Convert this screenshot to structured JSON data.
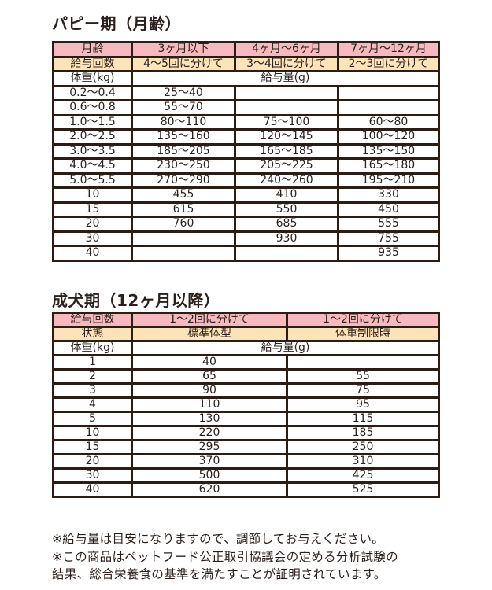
{
  "puppy": {
    "title": "パピー期（月齢）",
    "header_rows": [
      {
        "style": "pink",
        "cells": [
          "月齢",
          "3ヶ月以下",
          "4ヶ月〜6ヶ月",
          "7ヶ月〜12ヶ月"
        ]
      },
      {
        "style": "yellow",
        "cells": [
          "給与回数",
          "4〜5回に分けて",
          "3〜4回に分けて",
          "2〜3回に分けて"
        ]
      }
    ],
    "weight_label": "体重(kg)",
    "amount_label": "給与量(g)",
    "rows": [
      [
        "0.2〜0.4",
        "25〜40",
        "",
        ""
      ],
      [
        "0.6〜0.8",
        "55〜70",
        "",
        ""
      ],
      [
        "1.0〜1.5",
        "80〜110",
        "75〜100",
        "60〜80"
      ],
      [
        "2.0〜2.5",
        "135〜160",
        "120〜145",
        "100〜120"
      ],
      [
        "3.0〜3.5",
        "185〜205",
        "165〜185",
        "135〜150"
      ],
      [
        "4.0〜4.5",
        "230〜250",
        "205〜225",
        "165〜180"
      ],
      [
        "5.0〜5.5",
        "270〜290",
        "240〜260",
        "195〜210"
      ],
      [
        "10",
        "455",
        "410",
        "330"
      ],
      [
        "15",
        "615",
        "550",
        "450"
      ],
      [
        "20",
        "760",
        "685",
        "555"
      ],
      [
        "30",
        "",
        "930",
        "755"
      ],
      [
        "40",
        "",
        "",
        "935"
      ]
    ]
  },
  "adult": {
    "title": "成犬期（12ヶ月以降）",
    "header_rows": [
      {
        "style": "pink",
        "cells": [
          "給与回数",
          "1〜2回に分けて",
          "1〜2回に分けて"
        ]
      },
      {
        "style": "yellow",
        "cells": [
          "状態",
          "標準体型",
          "体重制限時"
        ]
      }
    ],
    "weight_label": "体重(kg)",
    "amount_label": "給与量(g)",
    "rows": [
      [
        "1",
        "40",
        ""
      ],
      [
        "2",
        "65",
        "55"
      ],
      [
        "3",
        "90",
        "75"
      ],
      [
        "4",
        "110",
        "95"
      ],
      [
        "5",
        "130",
        "115"
      ],
      [
        "10",
        "220",
        "185"
      ],
      [
        "15",
        "295",
        "250"
      ],
      [
        "20",
        "370",
        "310"
      ],
      [
        "30",
        "500",
        "425"
      ],
      [
        "40",
        "620",
        "525"
      ]
    ]
  },
  "notes": [
    "※給与量は目安になりますので、調節してお与えください。",
    "※この商品はペットフード公正取引協議会の定める分析試験の",
    "結果、総合栄養食の基準を満たすことが証明されています。"
  ],
  "colors": {
    "pink": "#f5b9bf",
    "yellow": "#fde3b8",
    "border": "#2b1d14"
  }
}
